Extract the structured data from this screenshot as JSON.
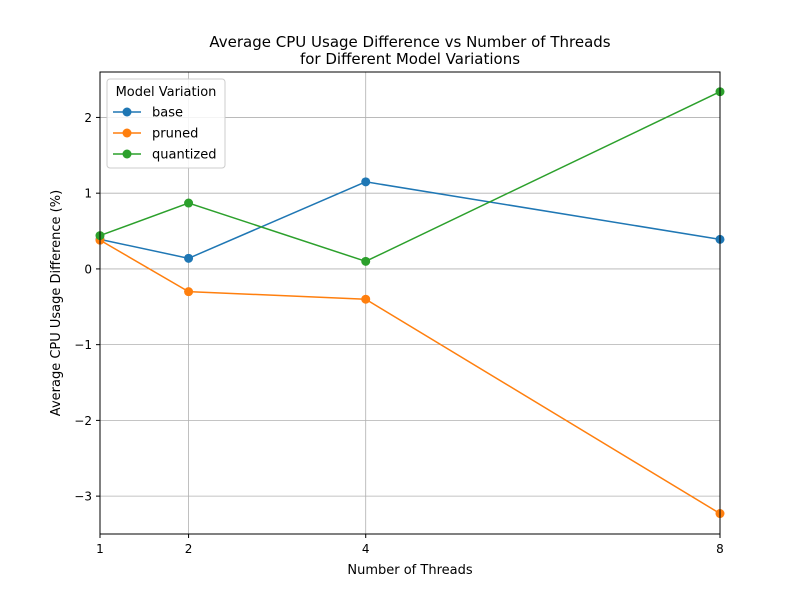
{
  "chart_data": {
    "type": "line",
    "title": [
      "Average CPU Usage Difference vs Number of Threads",
      "for Different Model Variations"
    ],
    "xlabel": "Number of Threads",
    "ylabel": "Average CPU Usage Difference (%)",
    "x": [
      1,
      2,
      4,
      8
    ],
    "xticks": [
      1,
      2,
      4,
      8
    ],
    "xtick_labels": [
      "1",
      "2",
      "4",
      "8"
    ],
    "yticks": [
      -3,
      -2,
      -1,
      0,
      1,
      2
    ],
    "ytick_labels": [
      "−3",
      "−2",
      "−1",
      "0",
      "1",
      "2"
    ],
    "xlim": [
      1,
      8
    ],
    "ylim": [
      -3.5,
      2.6
    ],
    "grid": true,
    "legend_title": "Model Variation",
    "legend_position": "top-left",
    "series": [
      {
        "name": "base",
        "color": "#1f77b4",
        "values": [
          0.39,
          0.14,
          1.15,
          0.39
        ]
      },
      {
        "name": "pruned",
        "color": "#ff7f0e",
        "values": [
          0.38,
          -0.3,
          -0.4,
          -3.23
        ]
      },
      {
        "name": "quantized",
        "color": "#2ca02c",
        "values": [
          0.44,
          0.87,
          0.1,
          2.34
        ]
      }
    ]
  }
}
